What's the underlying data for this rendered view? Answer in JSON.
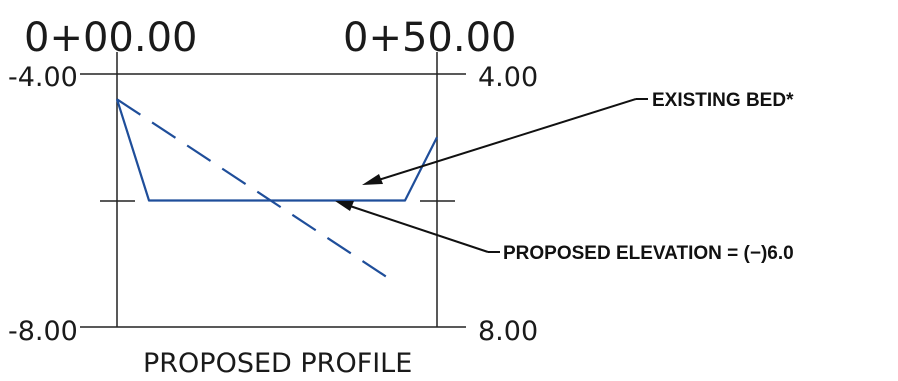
{
  "station_labels": {
    "start": "0+00.00",
    "end": "0+50.00"
  },
  "elevation_labels": {
    "top_left": "-4.00",
    "top_right": "4.00",
    "bottom_left": "-8.00",
    "bottom_right": "8.00"
  },
  "callouts": {
    "existing_bed": "EXISTING BED*",
    "proposed_elevation": "PROPOSED ELEVATION = (−)6.0"
  },
  "caption": "PROPOSED PROFILE",
  "colors": {
    "profile_line": "#1f4e9a",
    "grid_line": "#222222",
    "text": "#1a1a1a"
  },
  "chart_data": {
    "type": "line",
    "x_range": [
      0,
      50
    ],
    "y_range": [
      -8,
      -4
    ],
    "series": [
      {
        "name": "EXISTING BED*",
        "style": "dashed",
        "x": [
          0,
          42
        ],
        "y": [
          -4.4,
          -7.2
        ]
      },
      {
        "name": "PROPOSED ELEVATION = (−)6.0",
        "style": "solid",
        "x": [
          0,
          5,
          45,
          50
        ],
        "y": [
          -4.4,
          -6.0,
          -6.0,
          -5.0
        ]
      }
    ]
  }
}
